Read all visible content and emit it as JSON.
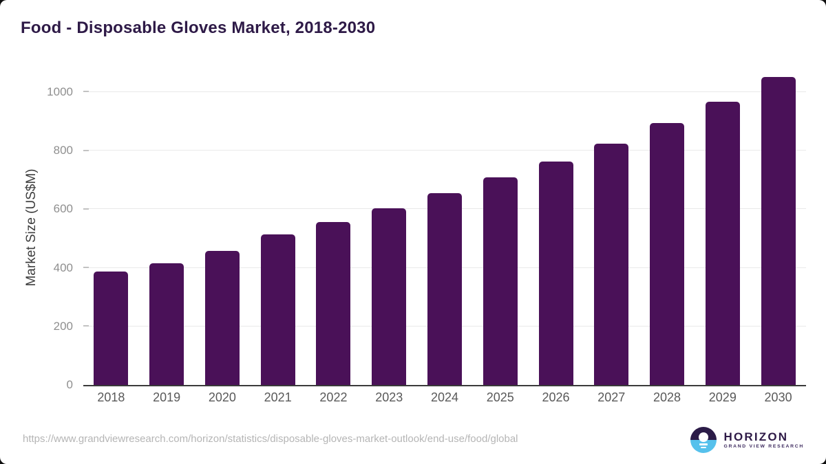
{
  "title": "Food - Disposable Gloves Market, 2018-2030",
  "chart_data": {
    "type": "bar",
    "title": "Food - Disposable Gloves Market, 2018-2030",
    "categories": [
      "2018",
      "2019",
      "2020",
      "2021",
      "2022",
      "2023",
      "2024",
      "2025",
      "2026",
      "2027",
      "2028",
      "2029",
      "2030"
    ],
    "values": [
      388,
      415,
      458,
      514,
      557,
      604,
      655,
      708,
      764,
      825,
      894,
      967,
      1051
    ],
    "xlabel": "",
    "ylabel": "Market Size (US$M)",
    "y_ticks": [
      0,
      200,
      400,
      600,
      800,
      1000
    ],
    "ylim": [
      0,
      1075
    ],
    "grid": "horizontal",
    "legend": "none",
    "bar_color": "#4a1158"
  },
  "footer": {
    "source_url": "https://www.grandviewresearch.com/horizon/statistics/disposable-gloves-market-outlook/end-use/food/global",
    "logo": {
      "name": "HORIZON",
      "subtitle": "GRAND VIEW RESEARCH"
    }
  },
  "colors": {
    "page_background": "#0f0f0f",
    "card_background": "#ffffff",
    "title_text": "#2e1a47",
    "bar": "#4a1158",
    "axis_line": "#3a3a3a",
    "gridline": "#e9e9e9",
    "y_tick_label": "#8f8f8f",
    "x_tick_label": "#595959",
    "url_text": "#b5b5b5",
    "logo_purple": "#2e1a47",
    "logo_blue": "#56c1ec"
  }
}
